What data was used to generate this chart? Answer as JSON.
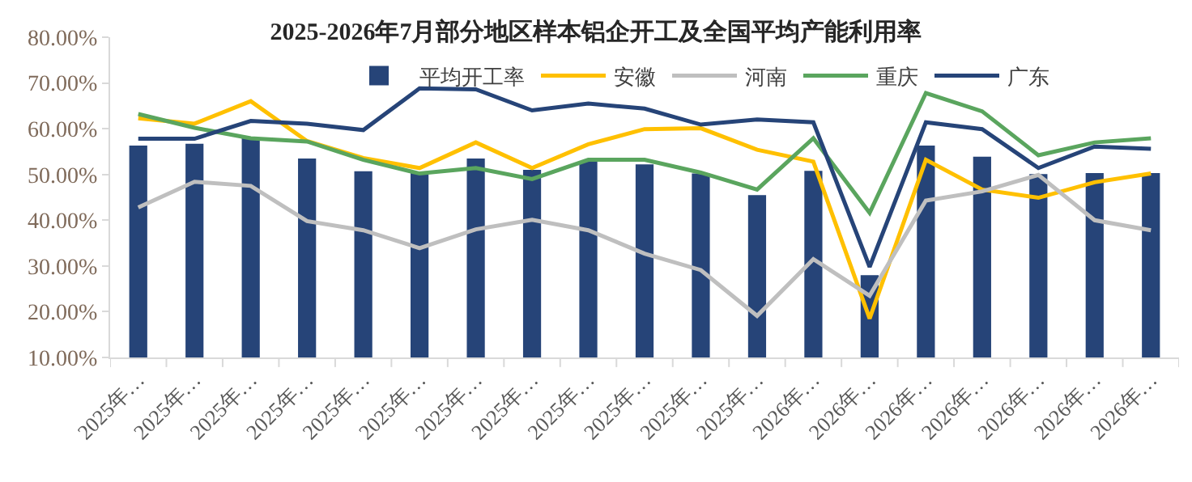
{
  "chart_data": {
    "type": "bar",
    "title": "2025-2026年7月部分地区样本铝企开工及全国平均产能利用率",
    "categories": [
      "2025年…",
      "2025年…",
      "2025年…",
      "2025年…",
      "2025年…",
      "2025年…",
      "2025年…",
      "2025年…",
      "2025年…",
      "2025年…",
      "2025年…",
      "2025年…",
      "2026年…",
      "2026年…",
      "2026年…",
      "2026年…",
      "2026年…",
      "2026年…",
      "2026年…"
    ],
    "series": [
      {
        "name": "平均开工率",
        "color": "#264478",
        "values": [
          56.3,
          56.7,
          58.1,
          53.5,
          50.7,
          50.5,
          53.5,
          51.0,
          52.8,
          52.2,
          50.2,
          45.5,
          50.8,
          28.0,
          56.3,
          53.9,
          50.1,
          50.3,
          50.3
        ]
      },
      {
        "name": "安徽",
        "type": "line",
        "color": "#ffc000",
        "values": [
          62.3,
          61.1,
          66.0,
          57.3,
          53.6,
          51.4,
          57.0,
          51.4,
          56.6,
          59.9,
          60.1,
          55.4,
          52.8,
          18.5,
          53.2,
          46.7,
          44.9,
          48.3,
          50.2
        ]
      },
      {
        "name": "河南",
        "type": "line",
        "color": "#bfbfbf",
        "values": [
          42.8,
          48.4,
          47.5,
          39.8,
          37.8,
          33.9,
          38.0,
          40.1,
          37.8,
          32.7,
          29.1,
          19.1,
          31.5,
          23.5,
          44.3,
          46.3,
          49.9,
          40.0,
          37.8
        ]
      },
      {
        "name": "重庆",
        "type": "line",
        "color": "#5aa55e",
        "values": [
          63.2,
          60.2,
          57.9,
          57.2,
          53.2,
          50.2,
          51.4,
          49.0,
          53.2,
          53.2,
          50.4,
          46.7,
          57.9,
          41.6,
          67.8,
          63.8,
          54.2,
          57.0,
          57.9
        ]
      },
      {
        "name": "广东",
        "type": "line",
        "color": "#264478",
        "values": [
          57.8,
          57.8,
          61.7,
          61.1,
          59.7,
          68.8,
          68.6,
          64.0,
          65.5,
          64.4,
          60.9,
          62.0,
          61.4,
          29.8,
          61.4,
          59.9,
          51.4,
          56.1,
          55.6
        ]
      }
    ],
    "ylim": [
      10,
      80
    ],
    "yticks": [
      {
        "value": 10,
        "label": "10.00%"
      },
      {
        "value": 20,
        "label": "20.00%"
      },
      {
        "value": 30,
        "label": "30.00%"
      },
      {
        "value": 40,
        "label": "40.00%"
      },
      {
        "value": 50,
        "label": "50.00%"
      },
      {
        "value": 60,
        "label": "60.00%"
      },
      {
        "value": 70,
        "label": "70.00%"
      },
      {
        "value": 80,
        "label": "80.00%"
      }
    ],
    "grid": false,
    "legend": "top"
  }
}
